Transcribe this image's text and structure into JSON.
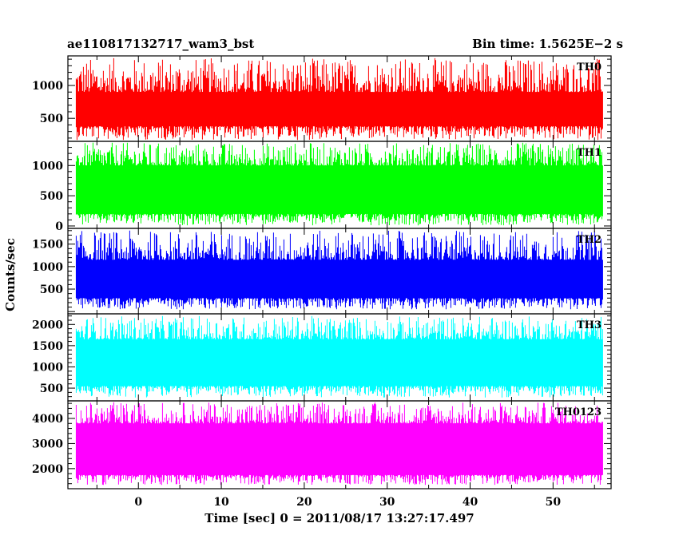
{
  "header": {
    "title": "ae110817132717_wam3_bst",
    "bin_time": "Bin time: 1.5625E−2 s"
  },
  "chart_data": {
    "type": "line",
    "xlabel": "Time [sec] 0 = 2011/08/17 13:27:17.497",
    "ylabel": "Counts/sec",
    "xlim": [
      -8.5,
      57
    ],
    "data_range": [
      -7.5,
      56
    ],
    "x_ticks": [
      0,
      10,
      20,
      30,
      40,
      50
    ],
    "panels": [
      {
        "name": "TH0",
        "color": "#ff0000",
        "ylim": [
          150,
          1450
        ],
        "y_ticks": [
          500,
          1000
        ],
        "base_low": 380,
        "base_high": 900,
        "min": 170,
        "max": 1420
      },
      {
        "name": "TH1",
        "color": "#00ff00",
        "ylim": [
          -40,
          1400
        ],
        "y_ticks": [
          0,
          500,
          1000
        ],
        "base_low": 200,
        "base_high": 1000,
        "min": 10,
        "max": 1380
      },
      {
        "name": "TH2",
        "color": "#0000ff",
        "ylim": [
          -50,
          1850
        ],
        "y_ticks": [
          500,
          1000,
          1500
        ],
        "base_low": 300,
        "base_high": 1150,
        "min": 50,
        "max": 1800
      },
      {
        "name": "TH3",
        "color": "#00ffff",
        "ylim": [
          200,
          2250
        ],
        "y_ticks": [
          500,
          1000,
          1500,
          2000
        ],
        "base_low": 550,
        "base_high": 1650,
        "min": 280,
        "max": 2200
      },
      {
        "name": "TH0123",
        "color": "#ff00ff",
        "ylim": [
          1200,
          4700
        ],
        "y_ticks": [
          2000,
          3000,
          4000
        ],
        "base_low": 1750,
        "base_high": 3800,
        "min": 1350,
        "max": 4650
      }
    ]
  }
}
